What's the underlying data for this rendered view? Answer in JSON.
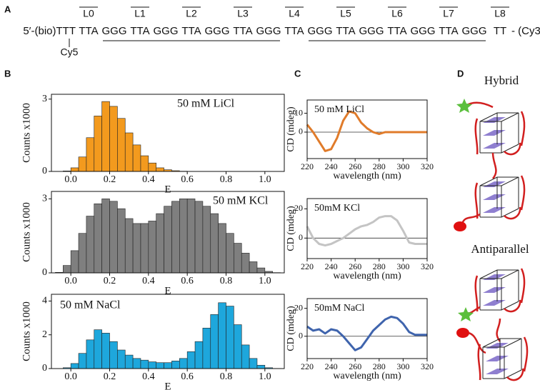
{
  "panel_labels": [
    "A",
    "B",
    "C",
    "D"
  ],
  "sequence": {
    "prefix": "5′-(bio)TTT",
    "tokens": [
      "TTA",
      "GGG",
      "TTA",
      "GGG",
      "TTA",
      "GGG",
      "TTA",
      "GGG",
      "TTA",
      "GGG",
      "TTA",
      "GGG",
      "TTA",
      "GGG",
      "TTA",
      "GGG",
      "TT"
    ],
    "suffix": "- (Cy3)- 3′",
    "loops": [
      "L0",
      "L1",
      "L2",
      "L3",
      "L4",
      "L5",
      "L6",
      "L7",
      "L8"
    ],
    "dye": "Cy5"
  },
  "structures": [
    "Hybrid",
    "Antiparallel"
  ],
  "chart_data": [
    {
      "type": "histogram",
      "annotation": "50 mM LiCl",
      "xlabel": "E",
      "ylabel": "Counts x1000",
      "color": "#f39a1e",
      "bins": [
        -0.08,
        -0.04,
        0,
        0.04,
        0.08,
        0.12,
        0.16,
        0.2,
        0.24,
        0.28,
        0.32,
        0.36,
        0.4,
        0.44,
        0.48,
        0.52,
        0.56,
        0.6,
        0.64,
        0.68,
        0.72,
        0.76,
        0.8,
        0.84,
        0.88,
        0.92,
        0.96,
        1,
        1.04,
        1.08
      ],
      "values": [
        0,
        0.02,
        0.15,
        0.6,
        1.4,
        2.3,
        2.9,
        2.7,
        2.2,
        1.6,
        1.1,
        0.65,
        0.35,
        0.15,
        0.07,
        0.03,
        0.01,
        0,
        0,
        0,
        0,
        0,
        0,
        0,
        0,
        0,
        0,
        0,
        0
      ],
      "xlim": [
        -0.1,
        1.1
      ],
      "ylim": [
        0,
        3.2
      ],
      "xticks": [
        {
          "value": 0,
          "label": "0.0"
        },
        0.2,
        0.4,
        0.6,
        0.8,
        {
          "value": 1,
          "label": "1.0"
        }
      ],
      "yticks": [
        0,
        3
      ]
    },
    {
      "type": "histogram",
      "annotation": "50 mM KCl",
      "xlabel": "E",
      "ylabel": "Counts x1000",
      "color": "#7f7f7f",
      "bins": [
        -0.08,
        -0.04,
        0,
        0.04,
        0.08,
        0.12,
        0.16,
        0.2,
        0.24,
        0.28,
        0.32,
        0.36,
        0.4,
        0.44,
        0.48,
        0.52,
        0.56,
        0.6,
        0.64,
        0.68,
        0.72,
        0.76,
        0.8,
        0.84,
        0.88,
        0.92,
        0.96,
        1,
        1.04,
        1.08
      ],
      "values": [
        0.02,
        0.3,
        0.9,
        1.6,
        2.3,
        2.8,
        3.0,
        2.9,
        2.6,
        2.2,
        2.0,
        2.0,
        2.1,
        2.4,
        2.7,
        2.9,
        3.0,
        3.0,
        2.9,
        2.7,
        2.4,
        2.0,
        1.6,
        1.2,
        0.8,
        0.45,
        0.2,
        0.06,
        0.01
      ],
      "xlim": [
        -0.1,
        1.1
      ],
      "ylim": [
        0,
        3.3
      ],
      "xticks": [
        {
          "value": 0,
          "label": "0.0"
        },
        0.2,
        0.4,
        0.6,
        0.8,
        {
          "value": 1,
          "label": "1.0"
        }
      ],
      "yticks": [
        0,
        3
      ]
    },
    {
      "type": "histogram",
      "annotation": "50 mM NaCl",
      "xlabel": "E",
      "ylabel": "Counts x1000",
      "color": "#1ea7dc",
      "bins": [
        -0.08,
        -0.04,
        0,
        0.04,
        0.08,
        0.12,
        0.16,
        0.2,
        0.24,
        0.28,
        0.32,
        0.36,
        0.4,
        0.44,
        0.48,
        0.52,
        0.56,
        0.6,
        0.64,
        0.68,
        0.72,
        0.76,
        0.8,
        0.84,
        0.88,
        0.92,
        0.96,
        1,
        1.04,
        1.08
      ],
      "values": [
        0,
        0.05,
        0.3,
        0.9,
        1.7,
        2.3,
        2.1,
        1.6,
        1.1,
        0.8,
        0.6,
        0.5,
        0.4,
        0.35,
        0.35,
        0.45,
        0.6,
        1.0,
        1.6,
        2.4,
        3.2,
        3.9,
        3.7,
        2.6,
        1.4,
        0.6,
        0.2,
        0.05,
        0.01
      ],
      "xlim": [
        -0.1,
        1.1
      ],
      "ylim": [
        0,
        4.4
      ],
      "xticks": [
        {
          "value": 0,
          "label": "0.0"
        },
        0.2,
        0.4,
        0.6,
        0.8,
        {
          "value": 1,
          "label": "1.0"
        }
      ],
      "yticks": [
        0,
        2,
        4
      ]
    },
    {
      "type": "line",
      "annotation": "50 mM LiCl",
      "xlabel": "wavelength (nm)",
      "ylabel": "CD (mdeg)",
      "color": "#e07b2a",
      "x": [
        220,
        225,
        230,
        235,
        240,
        245,
        250,
        255,
        260,
        265,
        270,
        275,
        280,
        285,
        290,
        295,
        300,
        305,
        310,
        315,
        320
      ],
      "values": [
        4,
        0,
        -5,
        -10,
        -9,
        -3,
        6,
        11,
        10,
        5,
        2,
        0,
        -1,
        0,
        0,
        0,
        0,
        0,
        0,
        0,
        0
      ],
      "xlim": [
        220,
        320
      ],
      "ylim": [
        -14,
        17
      ],
      "xticks": [
        220,
        240,
        260,
        280,
        300,
        320
      ],
      "yticks": [
        0,
        10
      ]
    },
    {
      "type": "line",
      "annotation": "50mM KCl",
      "xlabel": "wavelength (nm)",
      "ylabel": "CD (mdeg)",
      "color": "#c4c4c4",
      "x": [
        220,
        225,
        230,
        235,
        240,
        245,
        250,
        255,
        260,
        265,
        270,
        275,
        280,
        285,
        290,
        295,
        300,
        305,
        310,
        315,
        320
      ],
      "values": [
        8,
        0,
        -4,
        -5,
        -4,
        -2,
        0,
        3,
        6,
        8,
        9,
        11,
        14,
        15,
        15,
        12,
        5,
        -3,
        -4,
        -4,
        -4
      ],
      "xlim": [
        220,
        320
      ],
      "ylim": [
        -14,
        27
      ],
      "xticks": [
        220,
        240,
        260,
        280,
        300,
        320
      ],
      "yticks": [
        0,
        20
      ]
    },
    {
      "type": "line",
      "annotation": "50mM NaCl",
      "xlabel": "wavelength (nm)",
      "ylabel": "CD (mdeg)",
      "color": "#3f64ad",
      "x": [
        220,
        225,
        230,
        235,
        240,
        245,
        250,
        255,
        260,
        265,
        270,
        275,
        280,
        285,
        290,
        295,
        300,
        305,
        310,
        315,
        320
      ],
      "values": [
        7,
        4,
        5,
        2,
        5,
        4,
        0,
        -5,
        -10,
        -8,
        -2,
        4,
        8,
        12,
        14,
        13,
        9,
        3,
        1,
        1,
        1
      ],
      "xlim": [
        220,
        320
      ],
      "ylim": [
        -16,
        27
      ],
      "xticks": [
        220,
        240,
        260,
        280,
        300,
        320
      ],
      "yticks": [
        0,
        20
      ]
    }
  ]
}
